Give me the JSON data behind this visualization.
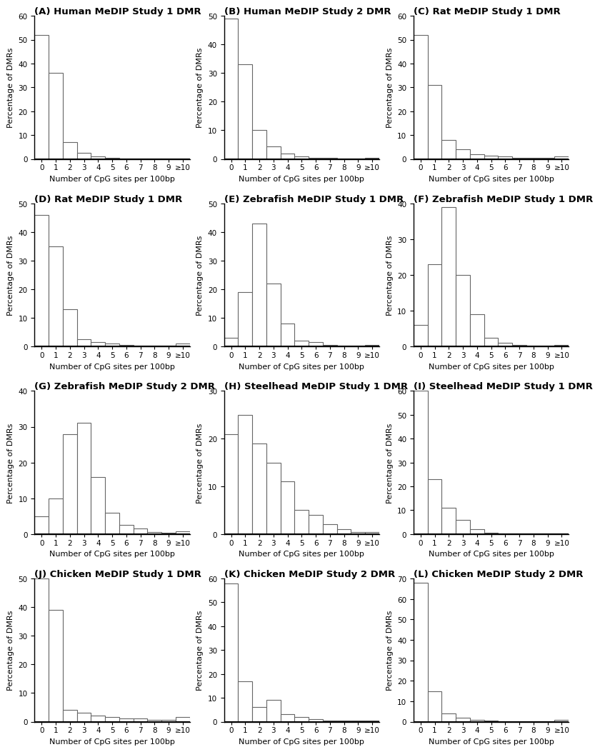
{
  "panels": [
    {
      "label": "A",
      "title": "Human MeDIP Study 1 DMR",
      "ylim": [
        0,
        60
      ],
      "yticks": [
        0,
        10,
        20,
        30,
        40,
        50,
        60
      ],
      "values": [
        52,
        36,
        7,
        2.5,
        1,
        0.5,
        0.3,
        0.2,
        0.2,
        0.2,
        0.3
      ]
    },
    {
      "label": "B",
      "title": "Human MeDIP Study 2 DMR",
      "ylim": [
        0,
        50
      ],
      "yticks": [
        0,
        10,
        20,
        30,
        40,
        50
      ],
      "values": [
        49,
        33,
        10,
        4.5,
        2,
        1,
        0.5,
        0.3,
        0.2,
        0.2,
        0.3
      ]
    },
    {
      "label": "C",
      "title": "Rat MeDIP Study 1 DMR",
      "ylim": [
        0,
        60
      ],
      "yticks": [
        0,
        10,
        20,
        30,
        40,
        50,
        60
      ],
      "values": [
        52,
        31,
        8,
        4,
        2,
        1.5,
        1,
        0.5,
        0.5,
        0.5,
        1.0
      ]
    },
    {
      "label": "D",
      "title": "Rat MeDIP Study 1 DMR",
      "ylim": [
        0,
        50
      ],
      "yticks": [
        0,
        10,
        20,
        30,
        40,
        50
      ],
      "values": [
        46,
        35,
        13,
        2.5,
        1.5,
        1,
        0.5,
        0.3,
        0.2,
        0.2,
        1.0
      ]
    },
    {
      "label": "E",
      "title": "Zebrafish MeDIP Study 1 DMR",
      "ylim": [
        0,
        50
      ],
      "yticks": [
        0,
        10,
        20,
        30,
        40,
        50
      ],
      "values": [
        3,
        19,
        43,
        22,
        8,
        2,
        1.5,
        0.5,
        0.3,
        0.3,
        0.5
      ]
    },
    {
      "label": "F",
      "title": "Zebrafish MeDIP Study 1 DMR",
      "ylim": [
        0,
        40
      ],
      "yticks": [
        0,
        10,
        20,
        30,
        40
      ],
      "values": [
        6,
        23,
        39,
        20,
        9,
        2.5,
        1,
        0.5,
        0.3,
        0.3,
        0.5
      ]
    },
    {
      "label": "G",
      "title": "Zebrafish MeDIP Study 2 DMR",
      "ylim": [
        0,
        40
      ],
      "yticks": [
        0,
        10,
        20,
        30,
        40
      ],
      "values": [
        5,
        10,
        28,
        31,
        16,
        6,
        2.5,
        1.5,
        0.5,
        0.3,
        0.8
      ]
    },
    {
      "label": "H",
      "title": "Steelhead MeDIP Study 1 DMR",
      "ylim": [
        0,
        30
      ],
      "yticks": [
        0,
        10,
        20,
        30
      ],
      "values": [
        21,
        25,
        19,
        15,
        11,
        5,
        4,
        2,
        1,
        0.5,
        0.5
      ]
    },
    {
      "label": "I",
      "title": "Steelhead MeDIP Study 1 DMR",
      "ylim": [
        0,
        60
      ],
      "yticks": [
        0,
        10,
        20,
        30,
        40,
        50,
        60
      ],
      "values": [
        60,
        23,
        11,
        6,
        2,
        0.5,
        0.3,
        0.2,
        0.2,
        0.2,
        0.3
      ]
    },
    {
      "label": "J",
      "title": "Chicken MeDIP Study 1 DMR",
      "ylim": [
        0,
        50
      ],
      "yticks": [
        0,
        10,
        20,
        30,
        40,
        50
      ],
      "values": [
        50,
        39,
        4,
        3,
        2,
        1.5,
        1,
        1,
        0.5,
        0.5,
        1.5
      ]
    },
    {
      "label": "K",
      "title": "Chicken MeDIP Study 2 DMR",
      "ylim": [
        0,
        60
      ],
      "yticks": [
        0,
        10,
        20,
        30,
        40,
        50,
        60
      ],
      "values": [
        58,
        17,
        6,
        9,
        3,
        2,
        1,
        0.5,
        0.5,
        0.5,
        0.5
      ]
    },
    {
      "label": "L",
      "title": "Chicken MeDIP Study 2 DMR",
      "ylim": [
        0,
        70
      ],
      "yticks": [
        0,
        10,
        20,
        30,
        40,
        50,
        60,
        70
      ],
      "values": [
        68,
        15,
        4,
        2,
        1,
        0.5,
        0.3,
        0.2,
        0.2,
        0.2,
        1.0
      ]
    }
  ],
  "xlabel": "Number of CpG sites per 100bp",
  "ylabel": "Percentage of DMRs",
  "bar_color": "white",
  "bar_edgecolor": "#666666",
  "background_color": "white",
  "x_categories": [
    "0",
    "1",
    "2",
    "3",
    "4",
    "5",
    "6",
    "7",
    "8",
    "9",
    "≥10"
  ],
  "title_fontsize": 9.5,
  "axis_fontsize": 8,
  "tick_fontsize": 7.5,
  "title_fontweight": "bold"
}
